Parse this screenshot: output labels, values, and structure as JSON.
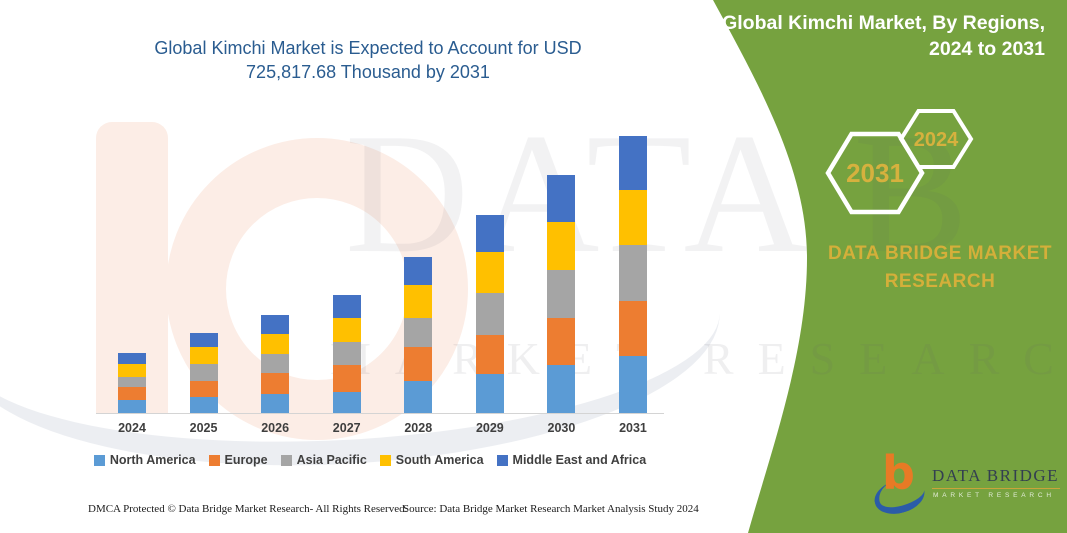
{
  "header": {
    "chart_title_line1": "Global Kimchi Market is Expected to Account for USD",
    "chart_title_line2": "725,817.68 Thousand  by 2031"
  },
  "side_panel": {
    "title_line1": "Global Kimchi Market, By Regions,",
    "title_line2": "2024 to 2031",
    "hexagon_labels": [
      "2031",
      "2024"
    ],
    "brand_line1": "DATA BRIDGE MARKET",
    "brand_line2": "RESEARCH",
    "colors": {
      "panel_green": "#76A23F",
      "accent_gold": "#D4AF3A",
      "title_white": "#FFFFFF"
    }
  },
  "logo": {
    "icon_letter": "b",
    "name": "DATA BRIDGE",
    "subtext": "MARKET RESEARCH",
    "colors": {
      "icon_orange": "#E87A25",
      "icon_blue": "#2B5CA8",
      "text_dark": "#333F50",
      "underline_gold": "#C9A43B"
    }
  },
  "watermark": {
    "text_primary": "DATA B",
    "text_secondary": "MARKET RESEARCH"
  },
  "footer": {
    "dmca": "DMCA Protected © Data Bridge Market Research-  All Rights Reserved.",
    "source": "Source: Data Bridge Market Research  Market Analysis Study 2024"
  },
  "chart_data": {
    "type": "bar",
    "stacked": true,
    "title": "Global Kimchi Market is Expected to Account for USD 725,817.68 Thousand by 2031",
    "unit": "USD Thousand",
    "stated_total_2031": 725817.68,
    "values_estimated_from_bar_heights": true,
    "grid": false,
    "y_axis_visible": false,
    "legend_position": "bottom",
    "title_color": "#2A5C90",
    "categories": [
      "2024",
      "2025",
      "2026",
      "2027",
      "2028",
      "2029",
      "2030",
      "2031"
    ],
    "series": [
      {
        "name": "North America",
        "color": "#5B9BD5",
        "values": [
          33194,
          41035,
          50444,
          54888,
          82854,
          102718,
          124673,
          148190
        ]
      },
      {
        "name": "Europe",
        "color": "#ED7D31",
        "values": [
          34762,
          41819,
          54104,
          69786,
          89650,
          101934,
          123628,
          143750
        ]
      },
      {
        "name": "Asia Pacific",
        "color": "#A5A5A5",
        "values": [
          26137,
          46262,
          50444,
          60899,
          75797,
          109775,
          124673,
          148190
        ]
      },
      {
        "name": "South America",
        "color": "#FFC000",
        "values": [
          33194,
          42603,
          50444,
          63513,
          85468,
          106378,
          126242,
          143750
        ]
      },
      {
        "name": "Middle East and Africa",
        "color": "#4472C4",
        "values": [
          30580,
          37376,
          49660,
          58285,
          73968,
          97491,
          123628,
          141937.68
        ]
      }
    ],
    "totals": [
      157867,
      209095,
      255096,
      307371,
      407737,
      518296,
      622844,
      725817.68
    ]
  }
}
